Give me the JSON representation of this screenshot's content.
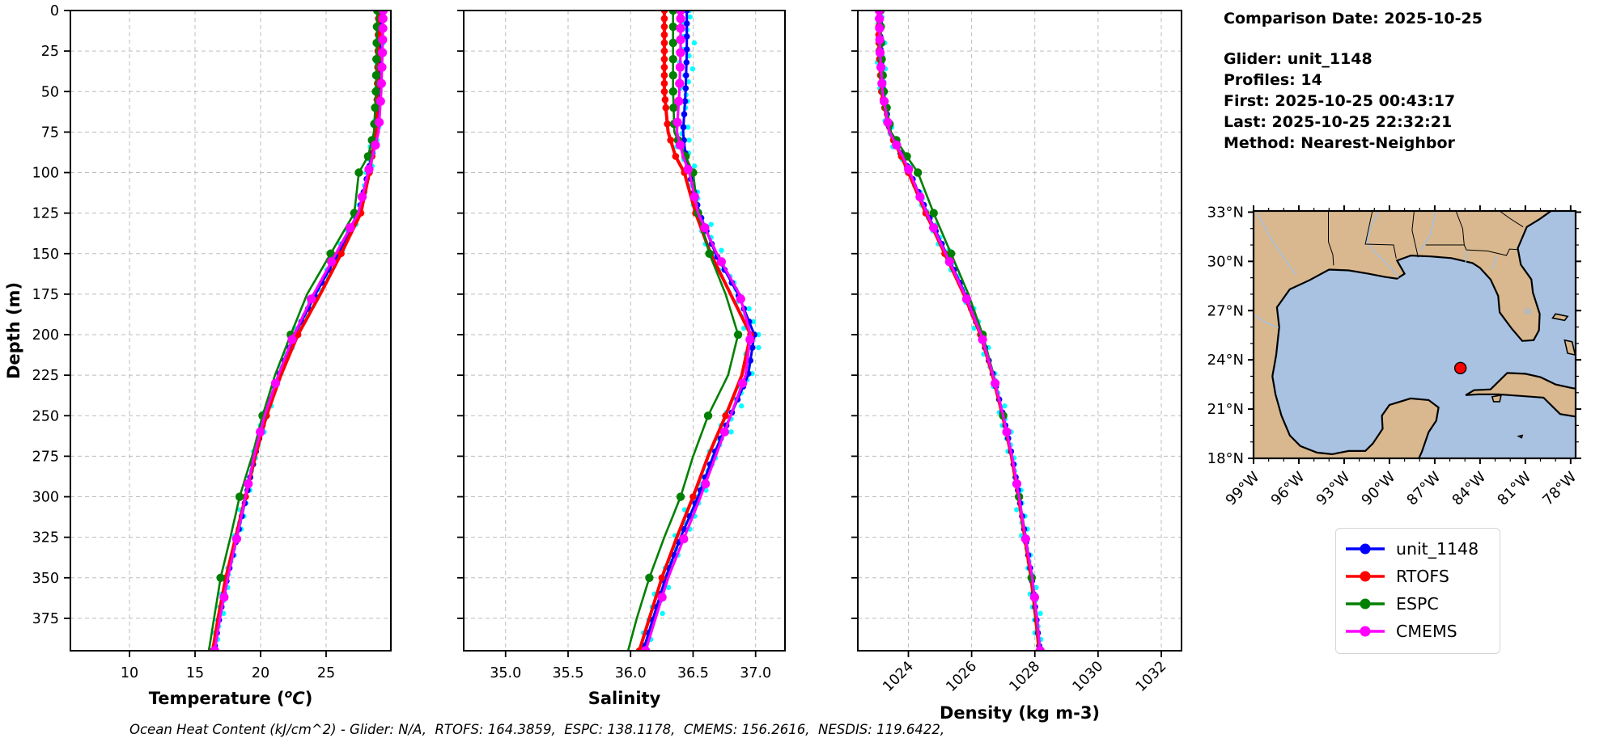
{
  "info_panel": {
    "comparison_date": "Comparison Date: 2025-10-25",
    "glider": "Glider: unit_1148",
    "profiles": "Profiles: 14",
    "first": "First: 2025-10-25 00:43:17",
    "last": "Last: 2025-10-25 22:32:21",
    "method": "Method: Nearest-Neighbor"
  },
  "footer": "Ocean Heat Content (kJ/cm^2) - Glider: N/A,  RTOFS: 164.3859,  ESPC: 138.1178,  CMEMS: 156.2616,  NESDIS: 119.6422,",
  "legend": {
    "items": [
      {
        "label": "unit_1148",
        "color": "#0000ff"
      },
      {
        "label": "RTOFS",
        "color": "#ff0000"
      },
      {
        "label": "ESPC",
        "color": "#008000"
      },
      {
        "label": "CMEMS",
        "color": "#ff00ff"
      }
    ]
  },
  "map": {
    "land_color": "#d9b88f",
    "ocean_color": "#a9c2e2",
    "coast_color": "#000000",
    "lake_color": "#b9b9b9",
    "river_color": "#9fc0e8",
    "lat_ticks": [
      {
        "v": 33,
        "t": "33°N"
      },
      {
        "v": 30,
        "t": "30°N"
      },
      {
        "v": 27,
        "t": "27°N"
      },
      {
        "v": 24,
        "t": "24°N"
      },
      {
        "v": 21,
        "t": "21°N"
      },
      {
        "v": 18,
        "t": "18°N"
      }
    ],
    "lon_ticks": [
      {
        "v": -99,
        "t": "99°W"
      },
      {
        "v": -96,
        "t": "96°W"
      },
      {
        "v": -93,
        "t": "93°W"
      },
      {
        "v": -90,
        "t": "90°W"
      },
      {
        "v": -87,
        "t": "87°W"
      },
      {
        "v": -84,
        "t": "84°W"
      },
      {
        "v": -81,
        "t": "81°W"
      },
      {
        "v": -78,
        "t": "78°W"
      }
    ],
    "glider_marker": {
      "lon": -85.3,
      "lat": 23.5,
      "color": "#ff0000"
    }
  },
  "chart_data": [
    {
      "type": "line",
      "xlabel": "Temperature (°C)",
      "xlabel_parts": {
        "pre": "Temperature (",
        "sup": "o",
        "italic": "C",
        "post": ")"
      },
      "ylabel": "Depth (m)",
      "xlim": [
        5.49,
        29.94
      ],
      "ylim": [
        0,
        395
      ],
      "grid": true,
      "legend_position": "below-map",
      "xticks": [
        {
          "v": 10,
          "t": "10"
        },
        {
          "v": 15,
          "t": "15"
        },
        {
          "v": 20,
          "t": "20"
        },
        {
          "v": 25,
          "t": "25"
        }
      ],
      "yticks": [
        0,
        25,
        50,
        75,
        100,
        125,
        150,
        175,
        200,
        225,
        250,
        275,
        300,
        325,
        350,
        375
      ],
      "depths": [
        0,
        25,
        50,
        75,
        90,
        100,
        125,
        150,
        175,
        200,
        225,
        250,
        275,
        300,
        325,
        350,
        375,
        395
      ],
      "series": [
        {
          "name": "glider-raw-scatter",
          "color": "#00ffff",
          "style": "scatter",
          "values": [
            29.15,
            29.1,
            29.0,
            28.85,
            28.45,
            28.2,
            27.5,
            25.9,
            24.2,
            22.6,
            21.4,
            20.35,
            19.55,
            18.9,
            18.2,
            17.45,
            16.85,
            16.45
          ]
        },
        {
          "name": "unit_1148",
          "color": "#0000ff",
          "style": "line",
          "values": [
            29.15,
            29.1,
            29.0,
            28.85,
            28.45,
            28.2,
            27.5,
            25.9,
            24.2,
            22.6,
            21.4,
            20.35,
            19.55,
            18.9,
            18.2,
            17.45,
            16.85,
            16.45
          ]
        },
        {
          "name": "RTOFS",
          "color": "#ff0000",
          "style": "line",
          "values": [
            29.0,
            28.95,
            28.9,
            28.8,
            28.5,
            28.3,
            27.65,
            26.15,
            24.55,
            22.85,
            21.55,
            20.45,
            19.6,
            18.85,
            18.1,
            17.35,
            16.75,
            16.35
          ]
        },
        {
          "name": "ESPC",
          "color": "#008000",
          "style": "line",
          "values": [
            28.9,
            28.85,
            28.8,
            28.65,
            28.2,
            27.5,
            27.15,
            25.35,
            23.55,
            22.3,
            21.1,
            20.15,
            19.35,
            18.4,
            17.7,
            16.95,
            16.45,
            16.05
          ]
        },
        {
          "name": "CMEMS",
          "color": "#ff00ff",
          "style": "line",
          "values": [
            29.35,
            29.3,
            29.2,
            29.0,
            28.55,
            28.2,
            27.45,
            25.75,
            24.05,
            22.55,
            21.35,
            20.3,
            19.5,
            18.85,
            18.2,
            17.5,
            16.9,
            16.5
          ]
        }
      ]
    },
    {
      "type": "line",
      "xlabel": "Salinity",
      "ylabel": "Depth (m)",
      "xlim": [
        34.665,
        37.235
      ],
      "ylim": [
        0,
        395
      ],
      "grid": true,
      "xticks": [
        {
          "v": 35.0,
          "t": "35.0"
        },
        {
          "v": 35.5,
          "t": "35.5"
        },
        {
          "v": 36.0,
          "t": "36.0"
        },
        {
          "v": 36.5,
          "t": "36.5"
        },
        {
          "v": 37.0,
          "t": "37.0"
        }
      ],
      "yticks": [
        0,
        25,
        50,
        75,
        100,
        125,
        150,
        175,
        200,
        225,
        250,
        275,
        300,
        325,
        350,
        375
      ],
      "depths": [
        0,
        25,
        50,
        75,
        90,
        100,
        125,
        150,
        175,
        200,
        225,
        250,
        275,
        300,
        325,
        350,
        375,
        395
      ],
      "series": [
        {
          "name": "glider-raw-scatter",
          "color": "#00ffff",
          "style": "scatter",
          "values": [
            36.45,
            36.45,
            36.44,
            36.42,
            36.44,
            36.47,
            36.55,
            36.68,
            36.86,
            36.99,
            36.94,
            36.8,
            36.66,
            36.54,
            36.4,
            36.28,
            36.18,
            36.1
          ]
        },
        {
          "name": "unit_1148",
          "color": "#0000ff",
          "style": "line",
          "values": [
            36.45,
            36.45,
            36.44,
            36.42,
            36.44,
            36.47,
            36.55,
            36.68,
            36.86,
            36.99,
            36.94,
            36.8,
            36.66,
            36.54,
            36.4,
            36.28,
            36.18,
            36.1
          ]
        },
        {
          "name": "RTOFS",
          "color": "#ff0000",
          "style": "line",
          "values": [
            36.27,
            36.27,
            36.27,
            36.3,
            36.36,
            36.43,
            36.52,
            36.64,
            36.8,
            36.96,
            36.89,
            36.76,
            36.62,
            36.5,
            36.37,
            36.25,
            36.15,
            36.07
          ]
        },
        {
          "name": "ESPC",
          "color": "#008000",
          "style": "line",
          "values": [
            36.34,
            36.34,
            36.34,
            36.35,
            36.44,
            36.5,
            36.54,
            36.63,
            36.76,
            36.86,
            36.78,
            36.62,
            36.5,
            36.4,
            36.27,
            36.15,
            36.05,
            35.98
          ]
        },
        {
          "name": "CMEMS",
          "color": "#ff00ff",
          "style": "line",
          "values": [
            36.4,
            36.4,
            36.39,
            36.37,
            36.42,
            36.47,
            36.54,
            36.69,
            36.87,
            36.96,
            36.92,
            36.8,
            36.68,
            36.56,
            36.43,
            36.3,
            36.2,
            36.12
          ]
        }
      ]
    },
    {
      "type": "line",
      "xlabel": "Density (kg m-3)",
      "ylabel": "Depth (m)",
      "xlim": [
        1022.4,
        1032.64
      ],
      "ylim": [
        0,
        395
      ],
      "grid": true,
      "xticks_rotated": true,
      "xticks": [
        {
          "v": 1024,
          "t": "1024"
        },
        {
          "v": 1026,
          "t": "1026"
        },
        {
          "v": 1028,
          "t": "1028"
        },
        {
          "v": 1030,
          "t": "1030"
        },
        {
          "v": 1032,
          "t": "1032"
        }
      ],
      "yticks": [
        0,
        25,
        50,
        75,
        100,
        125,
        150,
        175,
        200,
        225,
        250,
        275,
        300,
        325,
        350,
        375
      ],
      "depths": [
        0,
        25,
        50,
        75,
        90,
        100,
        125,
        150,
        175,
        200,
        225,
        250,
        275,
        300,
        325,
        350,
        375,
        395
      ],
      "series": [
        {
          "name": "glider-raw-scatter",
          "color": "#00ffff",
          "style": "scatter",
          "values": [
            1023.1,
            1023.12,
            1023.2,
            1023.42,
            1023.8,
            1024.05,
            1024.6,
            1025.2,
            1025.8,
            1026.3,
            1026.68,
            1027.0,
            1027.28,
            1027.5,
            1027.7,
            1027.9,
            1028.05,
            1028.15
          ]
        },
        {
          "name": "unit_1148",
          "color": "#0000ff",
          "style": "line",
          "values": [
            1023.1,
            1023.12,
            1023.2,
            1023.42,
            1023.8,
            1024.05,
            1024.6,
            1025.2,
            1025.8,
            1026.3,
            1026.68,
            1027.0,
            1027.28,
            1027.5,
            1027.7,
            1027.9,
            1028.05,
            1028.15
          ]
        },
        {
          "name": "RTOFS",
          "color": "#ff0000",
          "style": "line",
          "values": [
            1023.05,
            1023.07,
            1023.15,
            1023.4,
            1023.78,
            1024.0,
            1024.55,
            1025.15,
            1025.75,
            1026.28,
            1026.66,
            1026.98,
            1027.26,
            1027.48,
            1027.68,
            1027.88,
            1028.03,
            1028.13
          ]
        },
        {
          "name": "ESPC",
          "color": "#008000",
          "style": "line",
          "values": [
            1023.12,
            1023.14,
            1023.22,
            1023.45,
            1023.95,
            1024.3,
            1024.8,
            1025.35,
            1025.9,
            1026.35,
            1026.7,
            1027.0,
            1027.28,
            1027.5,
            1027.72,
            1027.9,
            1028.05,
            1028.15
          ]
        },
        {
          "name": "CMEMS",
          "color": "#ff00ff",
          "style": "line",
          "values": [
            1023.08,
            1023.1,
            1023.18,
            1023.4,
            1023.82,
            1024.05,
            1024.58,
            1025.18,
            1025.78,
            1026.3,
            1026.68,
            1027.0,
            1027.28,
            1027.5,
            1027.7,
            1027.92,
            1028.07,
            1028.17
          ]
        }
      ]
    }
  ]
}
